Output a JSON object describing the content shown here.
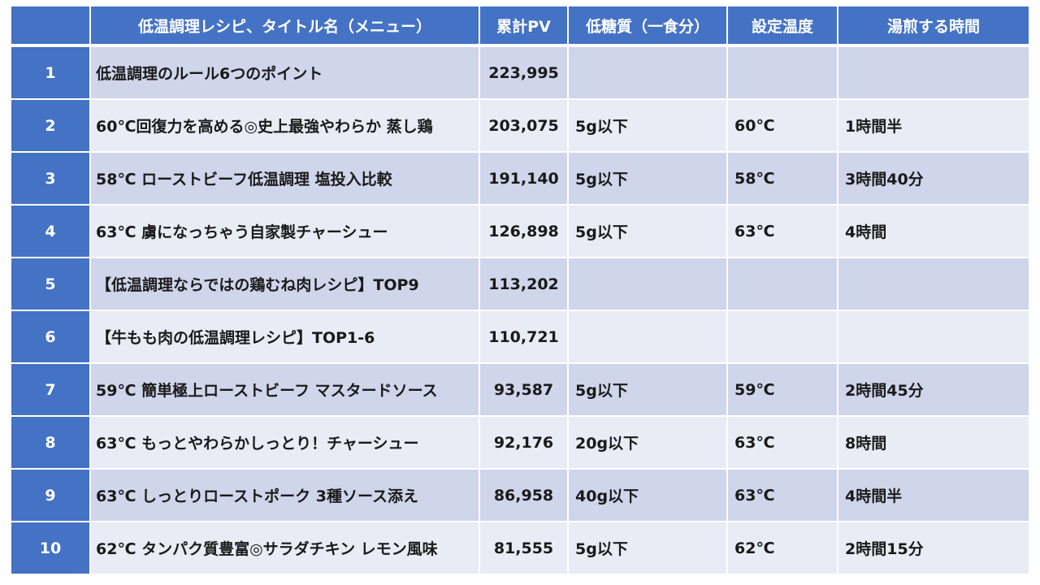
{
  "table": {
    "headers": {
      "rank": "",
      "title": "低温調理レシピ、タイトル名（メニュー）",
      "pv": "累計PV",
      "carb": "低糖質（一食分）",
      "temp": "設定温度",
      "time": "湯煎する時間"
    },
    "rows": [
      {
        "rank": "1",
        "title": "低温調理のルール6つのポイント",
        "pv": "223,995",
        "carb": "",
        "temp": "",
        "time": ""
      },
      {
        "rank": "2",
        "title": "60℃回復力を高める◎史上最強やわらか 蒸し鶏",
        "pv": "203,075",
        "carb": "5g以下",
        "temp": "60℃",
        "time": "1時間半"
      },
      {
        "rank": "3",
        "title": "58℃ ローストビーフ低温調理 塩投入比較",
        "pv": "191,140",
        "carb": "5g以下",
        "temp": "58℃",
        "time": "3時間40分"
      },
      {
        "rank": "4",
        "title": "63℃ 虜になっちゃう自家製チャーシュー",
        "pv": "126,898",
        "carb": "5g以下",
        "temp": "63℃",
        "time": "4時間"
      },
      {
        "rank": "5",
        "title": "【低温調理ならではの鶏むね肉レシピ】TOP9",
        "pv": "113,202",
        "carb": "",
        "temp": "",
        "time": ""
      },
      {
        "rank": "6",
        "title": "【牛もも肉の低温調理レシピ】TOP1-6",
        "pv": "110,721",
        "carb": "",
        "temp": "",
        "time": ""
      },
      {
        "rank": "7",
        "title": "59℃ 簡単極上ローストビーフ マスタードソース",
        "pv": "93,587",
        "carb": "5g以下",
        "temp": "59℃",
        "time": "2時間45分"
      },
      {
        "rank": "8",
        "title": "63℃ もっとやわらかしっとり！チャーシュー",
        "pv": "92,176",
        "carb": "20g以下",
        "temp": "63℃",
        "time": "8時間"
      },
      {
        "rank": "9",
        "title": "63℃ しっとりローストポーク 3種ソース添え",
        "pv": "86,958",
        "carb": "40g以下",
        "temp": "63℃",
        "time": "4時間半"
      },
      {
        "rank": "10",
        "title": "62℃ タンパク質豊富◎サラダチキン レモン風味",
        "pv": "81,555",
        "carb": "5g以下",
        "temp": "62℃",
        "time": "2時間15分"
      }
    ]
  },
  "colors": {
    "header_bg": "#4472c4",
    "row_odd": "#cfd5ea",
    "row_even": "#e9ebf5"
  }
}
